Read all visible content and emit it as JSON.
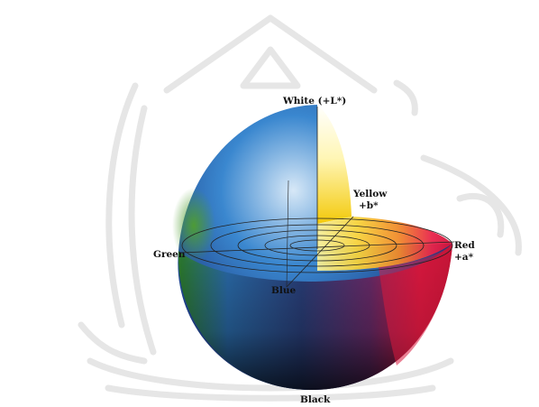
{
  "labels": {
    "white": "White (+L*)",
    "yellow": "Yellow",
    "yellow_axis": "+b*",
    "red": "Red",
    "red_axis": "+a*",
    "green": "Green",
    "blue": "Blue",
    "black": "Black"
  },
  "colors": {
    "background": "#ffffff",
    "watermark": "#e6e6e6",
    "white": "#ffffff",
    "yellow": "#f5d800",
    "red": "#e0103a",
    "green": "#3a8a2c",
    "blue": "#1f5fb4",
    "black": "#1a1a1a",
    "gridlines": "#222222"
  },
  "watermark_icon": "university-seal-watermark"
}
